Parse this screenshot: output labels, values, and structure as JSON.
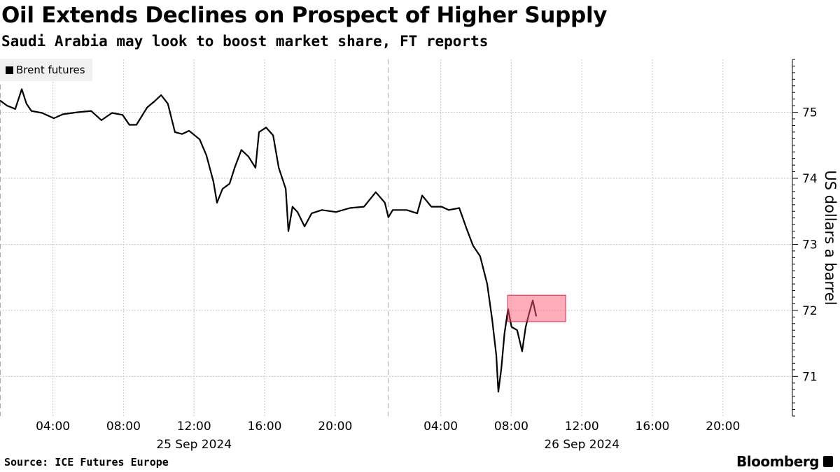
{
  "title": "Oil Extends Declines on Prospect of Higher Supply",
  "subtitle": "Saudi Arabia may look to boost market share, FT reports",
  "source": "Source: ICE Futures Europe",
  "brand": "Bloomberg",
  "chart_data": {
    "type": "line",
    "title": "Oil Extends Declines on Prospect of Higher Supply",
    "ylabel": "US dollars a barrel",
    "xlabel": "",
    "ylim": [
      70.4,
      75.8
    ],
    "y_ticks": [
      71,
      72,
      73,
      74,
      75
    ],
    "y_axis_position": "right",
    "grid": true,
    "legend": "top-left",
    "x_tick_labels": [
      {
        "day": "2024-09-25",
        "time": "04:00"
      },
      {
        "day": "2024-09-25",
        "time": "08:00"
      },
      {
        "day": "2024-09-25",
        "time": "12:00"
      },
      {
        "day": "2024-09-25",
        "time": "16:00"
      },
      {
        "day": "2024-09-25",
        "time": "20:00"
      },
      {
        "day": "2024-09-26",
        "time": "04:00"
      },
      {
        "day": "2024-09-26",
        "time": "08:00"
      },
      {
        "day": "2024-09-26",
        "time": "12:00"
      },
      {
        "day": "2024-09-26",
        "time": "16:00"
      },
      {
        "day": "2024-09-26",
        "time": "20:00"
      }
    ],
    "date_labels": [
      {
        "day": "2024-09-25",
        "label": "25 Sep 2024"
      },
      {
        "day": "2024-09-26",
        "label": "26 Sep 2024"
      }
    ],
    "session_hours": [
      "01:00",
      "23:00"
    ],
    "highlight": {
      "x": [
        "2024-09-26 07:48",
        "2024-09-26 11:05"
      ],
      "y": [
        71.83,
        72.23
      ],
      "color": "#ff5a78"
    },
    "series": [
      {
        "name": "Brent futures",
        "color": "#000000",
        "x": [
          "2024-09-25 01:00",
          "2024-09-25 01:24",
          "2024-09-25 01:52",
          "2024-09-25 02:14",
          "2024-09-25 02:30",
          "2024-09-25 02:47",
          "2024-09-25 03:23",
          "2024-09-25 04:03",
          "2024-09-25 04:34",
          "2024-09-25 05:22",
          "2024-09-25 06:10",
          "2024-09-25 06:45",
          "2024-09-25 07:21",
          "2024-09-25 07:57",
          "2024-09-25 08:20",
          "2024-09-25 08:44",
          "2024-09-25 09:20",
          "2024-09-25 09:44",
          "2024-09-25 10:08",
          "2024-09-25 10:31",
          "2024-09-25 10:55",
          "2024-09-25 11:19",
          "2024-09-25 11:43",
          "2024-09-25 12:19",
          "2024-09-25 12:42",
          "2024-09-25 13:06",
          "2024-09-25 13:18",
          "2024-09-25 13:37",
          "2024-09-25 14:01",
          "2024-09-25 14:18",
          "2024-09-25 14:41",
          "2024-09-25 15:05",
          "2024-09-25 15:29",
          "2024-09-25 15:41",
          "2024-09-25 16:05",
          "2024-09-25 16:29",
          "2024-09-25 16:48",
          "2024-09-25 17:12",
          "2024-09-25 17:21",
          "2024-09-25 17:35",
          "2024-09-25 17:52",
          "2024-09-25 18:16",
          "2024-09-25 18:40",
          "2024-09-25 19:15",
          "2024-09-25 20:03",
          "2024-09-25 20:50",
          "2024-09-25 21:38",
          "2024-09-25 22:18",
          "2024-09-25 22:49",
          "2024-09-26 01:02",
          "2024-09-26 01:17",
          "2024-09-26 02:04",
          "2024-09-26 02:40",
          "2024-09-26 02:57",
          "2024-09-26 03:28",
          "2024-09-26 04:03",
          "2024-09-26 04:27",
          "2024-09-26 05:03",
          "2024-09-26 05:27",
          "2024-09-26 05:50",
          "2024-09-26 06:14",
          "2024-09-26 06:38",
          "2024-09-26 06:55",
          "2024-09-26 07:09",
          "2024-09-26 07:16",
          "2024-09-26 07:26",
          "2024-09-26 07:37",
          "2024-09-26 07:49",
          "2024-09-26 08:01",
          "2024-09-26 08:20",
          "2024-09-26 08:37",
          "2024-09-26 08:49",
          "2024-09-26 09:01",
          "2024-09-26 09:13",
          "2024-09-26 09:25"
        ],
        "values": [
          75.18,
          75.1,
          75.05,
          75.35,
          75.13,
          75.02,
          74.99,
          74.91,
          74.97,
          75.0,
          75.02,
          74.88,
          74.99,
          74.96,
          74.81,
          74.81,
          75.07,
          75.16,
          75.26,
          75.13,
          74.7,
          74.67,
          74.72,
          74.59,
          74.35,
          73.95,
          73.63,
          73.84,
          73.92,
          74.16,
          74.43,
          74.33,
          74.16,
          74.7,
          74.77,
          74.65,
          74.16,
          73.84,
          73.2,
          73.57,
          73.49,
          73.27,
          73.47,
          73.52,
          73.49,
          73.55,
          73.57,
          73.79,
          73.63,
          73.41,
          73.52,
          73.52,
          73.47,
          73.74,
          73.57,
          73.57,
          73.52,
          73.55,
          73.25,
          72.98,
          72.82,
          72.4,
          71.86,
          71.32,
          70.77,
          71.11,
          71.65,
          72.02,
          71.75,
          71.7,
          71.38,
          71.75,
          71.96,
          72.15,
          71.91
        ]
      }
    ]
  }
}
